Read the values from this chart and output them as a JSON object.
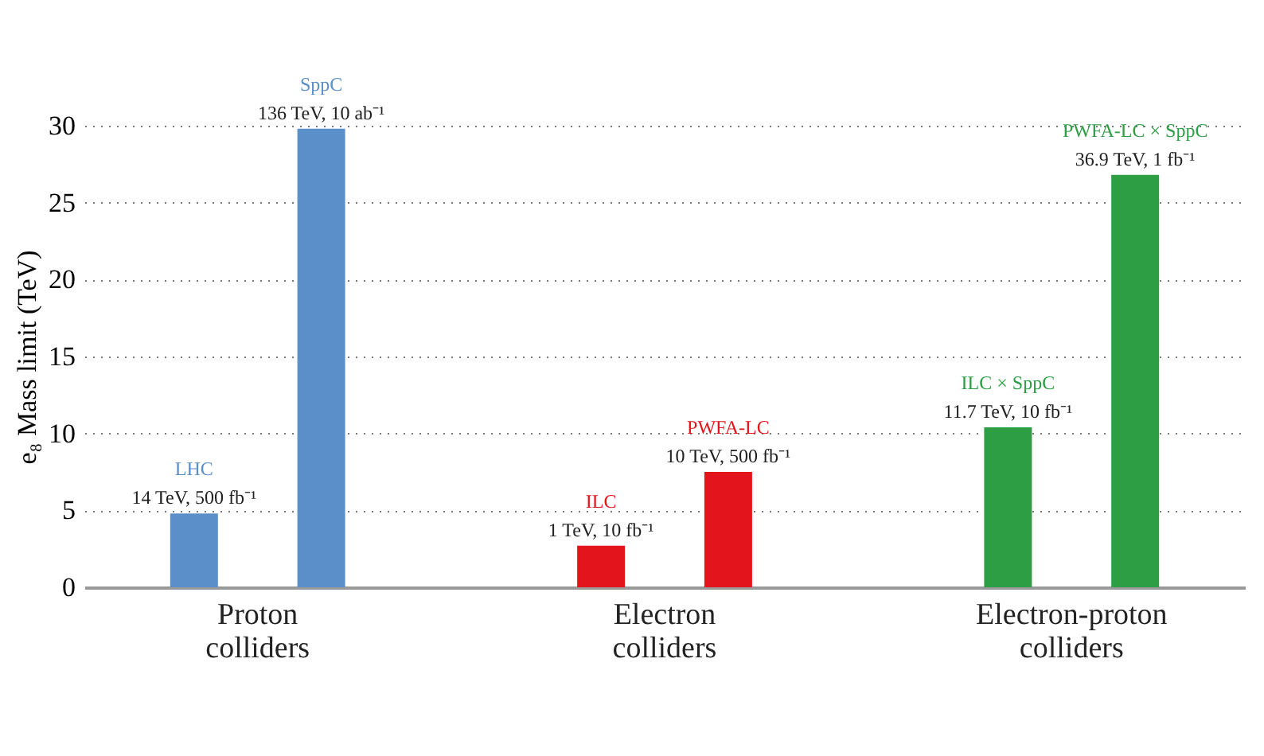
{
  "chart_data": {
    "type": "bar",
    "categories": [
      "LHC",
      "SppC",
      "ILC",
      "PWFA-LC",
      "ILC × SppC",
      "PWFA-LC × SppC"
    ],
    "values": [
      4.8,
      29.8,
      2.7,
      7.5,
      10.4,
      26.8
    ],
    "colors": [
      "#5b8fc9",
      "#5b8fc9",
      "#e3141b",
      "#e3141b",
      "#2e9e44",
      "#2e9e44"
    ],
    "ylabel": "e₈ Mass limit (TeV)",
    "ylim": [
      0,
      30
    ],
    "yticks": [
      0,
      5,
      10,
      15,
      20,
      25,
      30
    ],
    "grid": "y",
    "annotations": [
      "Proton colliders",
      "Electron colliders",
      "Electron-proton colliders",
      "14 TeV, 500 fb⁻¹",
      "136 TeV, 10 ab⁻¹",
      "1 TeV, 10 fb⁻¹",
      "10 TeV, 500 fb⁻¹",
      "11.7 TeV, 10 fb⁻¹",
      "36.9 TeV, 1 fb⁻¹"
    ]
  }
}
